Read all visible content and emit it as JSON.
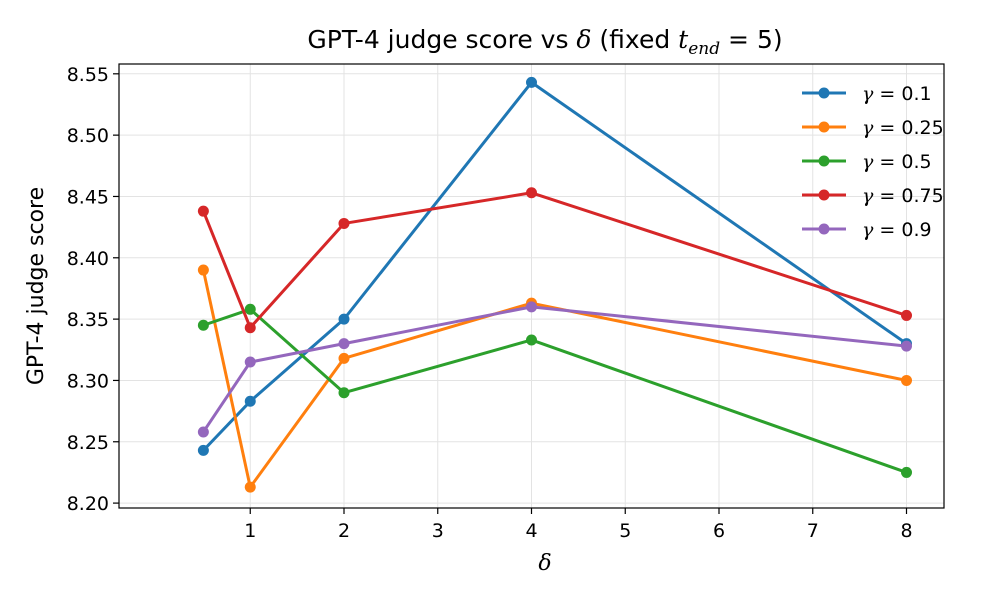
{
  "chart_data": {
    "type": "line",
    "title_parts": {
      "prefix": "GPT-4 judge score vs ",
      "symbol": "δ",
      "middle": " (fixed ",
      "var": "t",
      "sub": "end",
      "suffix": " = 5)"
    },
    "xlabel": "δ",
    "ylabel": "GPT-4 judge score",
    "x": [
      0.5,
      1,
      2,
      4,
      8
    ],
    "xticks": [
      1,
      2,
      3,
      4,
      5,
      6,
      7,
      8
    ],
    "xlim": [
      -0.4,
      8.4
    ],
    "yticks": [
      8.2,
      8.25,
      8.3,
      8.35,
      8.4,
      8.45,
      8.5,
      8.55
    ],
    "ytick_labels": [
      "8.20",
      "8.25",
      "8.30",
      "8.35",
      "8.40",
      "8.45",
      "8.50",
      "8.55"
    ],
    "ylim": [
      8.196,
      8.558
    ],
    "grid": true,
    "legend_position": "top-right",
    "series": [
      {
        "name": "γ = 0.1",
        "label_sym": "γ",
        "label_val": " = 0.1",
        "color": "#1f77b4",
        "values": [
          8.243,
          8.283,
          8.35,
          8.543,
          8.33
        ]
      },
      {
        "name": "γ = 0.25",
        "label_sym": "γ",
        "label_val": " = 0.25",
        "color": "#ff7f0e",
        "values": [
          8.39,
          8.213,
          8.318,
          8.363,
          8.3
        ]
      },
      {
        "name": "γ = 0.5",
        "label_sym": "γ",
        "label_val": " = 0.5",
        "color": "#2ca02c",
        "values": [
          8.345,
          8.358,
          8.29,
          8.333,
          8.225
        ]
      },
      {
        "name": "γ = 0.75",
        "label_sym": "γ",
        "label_val": " = 0.75",
        "color": "#d62728",
        "values": [
          8.438,
          8.343,
          8.428,
          8.453,
          8.353
        ]
      },
      {
        "name": "γ = 0.9",
        "label_sym": "γ",
        "label_val": " = 0.9",
        "color": "#9467bd",
        "values": [
          8.258,
          8.315,
          8.33,
          8.36,
          8.328
        ]
      }
    ]
  }
}
